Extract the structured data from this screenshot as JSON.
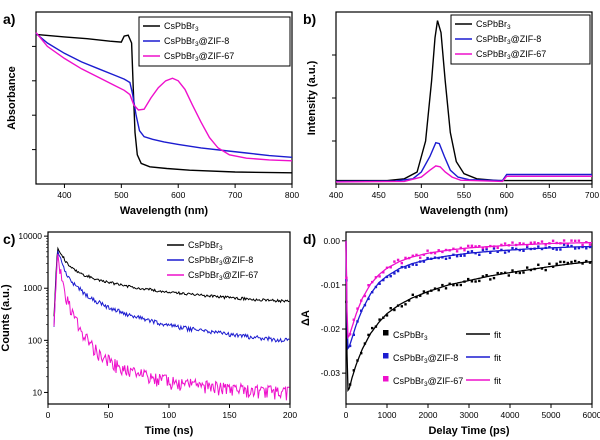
{
  "figure": {
    "background": "#ffffff"
  },
  "colors": {
    "black": "#000000",
    "blue": "#1c1cd0",
    "magenta": "#ee10cc"
  },
  "chart_data": [
    {
      "id": "a",
      "panel_label": "a)",
      "type": "line",
      "xlabel": "Wavelength (nm)",
      "ylabel": "Absorbance",
      "xlim": [
        350,
        800
      ],
      "xticks": [
        400,
        500,
        600,
        700,
        800
      ],
      "ylim": [
        0,
        1
      ],
      "yticks": [
        {
          "v": 0.2,
          "label": ""
        },
        {
          "v": 0.4,
          "label": ""
        },
        {
          "v": 0.6,
          "label": ""
        },
        {
          "v": 0.8,
          "label": ""
        }
      ],
      "legend_position": "top-right",
      "series": [
        {
          "name": "CsPbBr3",
          "color": "#000000",
          "points": [
            [
              350,
              0.87
            ],
            [
              400,
              0.855
            ],
            [
              440,
              0.845
            ],
            [
              480,
              0.83
            ],
            [
              500,
              0.825
            ],
            [
              505,
              0.86
            ],
            [
              512,
              0.865
            ],
            [
              518,
              0.82
            ],
            [
              521,
              0.55
            ],
            [
              524,
              0.3
            ],
            [
              528,
              0.17
            ],
            [
              535,
              0.12
            ],
            [
              550,
              0.1
            ],
            [
              580,
              0.09
            ],
            [
              620,
              0.08
            ],
            [
              700,
              0.07
            ],
            [
              800,
              0.065
            ]
          ]
        },
        {
          "name": "CsPbBr3@ZIF-8",
          "color": "#1c1cd0",
          "points": [
            [
              350,
              0.875
            ],
            [
              370,
              0.82
            ],
            [
              400,
              0.76
            ],
            [
              430,
              0.71
            ],
            [
              460,
              0.67
            ],
            [
              490,
              0.63
            ],
            [
              505,
              0.61
            ],
            [
              515,
              0.59
            ],
            [
              520,
              0.52
            ],
            [
              526,
              0.4
            ],
            [
              532,
              0.31
            ],
            [
              540,
              0.275
            ],
            [
              555,
              0.26
            ],
            [
              575,
              0.245
            ],
            [
              600,
              0.23
            ],
            [
              640,
              0.21
            ],
            [
              680,
              0.195
            ],
            [
              720,
              0.18
            ],
            [
              760,
              0.165
            ],
            [
              800,
              0.155
            ]
          ]
        },
        {
          "name": "CsPbBr3@ZIF-67",
          "color": "#ee10cc",
          "points": [
            [
              350,
              0.88
            ],
            [
              370,
              0.8
            ],
            [
              400,
              0.73
            ],
            [
              430,
              0.67
            ],
            [
              460,
              0.62
            ],
            [
              490,
              0.57
            ],
            [
              505,
              0.545
            ],
            [
              515,
              0.52
            ],
            [
              522,
              0.46
            ],
            [
              530,
              0.43
            ],
            [
              540,
              0.435
            ],
            [
              552,
              0.5
            ],
            [
              565,
              0.56
            ],
            [
              578,
              0.6
            ],
            [
              590,
              0.615
            ],
            [
              600,
              0.6
            ],
            [
              612,
              0.55
            ],
            [
              625,
              0.46
            ],
            [
              640,
              0.36
            ],
            [
              655,
              0.27
            ],
            [
              670,
              0.21
            ],
            [
              690,
              0.17
            ],
            [
              720,
              0.15
            ],
            [
              760,
              0.14
            ],
            [
              800,
              0.135
            ]
          ]
        }
      ]
    },
    {
      "id": "b",
      "panel_label": "b)",
      "type": "line",
      "xlabel": "Wavelength (nm)",
      "ylabel": "Intensity (a.u.)",
      "xlim": [
        400,
        700
      ],
      "xticks": [
        400,
        450,
        500,
        550,
        600,
        650,
        700
      ],
      "ylim": [
        0,
        1
      ],
      "yticks": [
        {
          "v": 0.25,
          "label": ""
        },
        {
          "v": 0.5,
          "label": ""
        },
        {
          "v": 0.75,
          "label": ""
        }
      ],
      "legend_position": "top-right",
      "series": [
        {
          "name": "CsPbBr3",
          "color": "#000000",
          "points": [
            [
              400,
              0.02
            ],
            [
              460,
              0.02
            ],
            [
              480,
              0.03
            ],
            [
              495,
              0.07
            ],
            [
              505,
              0.25
            ],
            [
              512,
              0.6
            ],
            [
              516,
              0.85
            ],
            [
              519,
              0.95
            ],
            [
              523,
              0.88
            ],
            [
              528,
              0.6
            ],
            [
              534,
              0.3
            ],
            [
              541,
              0.13
            ],
            [
              550,
              0.06
            ],
            [
              565,
              0.03
            ],
            [
              590,
              0.02
            ],
            [
              700,
              0.02
            ]
          ]
        },
        {
          "name": "CsPbBr3@ZIF-8",
          "color": "#1c1cd0",
          "points": [
            [
              400,
              0.015
            ],
            [
              470,
              0.018
            ],
            [
              490,
              0.03
            ],
            [
              500,
              0.07
            ],
            [
              510,
              0.16
            ],
            [
              517,
              0.24
            ],
            [
              521,
              0.235
            ],
            [
              527,
              0.16
            ],
            [
              534,
              0.08
            ],
            [
              543,
              0.04
            ],
            [
              556,
              0.025
            ],
            [
              595,
              0.02
            ],
            [
              600,
              0.055
            ],
            [
              700,
              0.055
            ]
          ]
        },
        {
          "name": "CsPbBr3@ZIF-67",
          "color": "#ee10cc",
          "points": [
            [
              400,
              0.012
            ],
            [
              480,
              0.015
            ],
            [
              500,
              0.04
            ],
            [
              510,
              0.08
            ],
            [
              517,
              0.105
            ],
            [
              522,
              0.1
            ],
            [
              528,
              0.07
            ],
            [
              536,
              0.04
            ],
            [
              546,
              0.022
            ],
            [
              595,
              0.015
            ],
            [
              600,
              0.045
            ],
            [
              700,
              0.045
            ]
          ]
        }
      ]
    },
    {
      "id": "c",
      "panel_label": "c)",
      "type": "line",
      "ylog": true,
      "xlabel": "Time (ns)",
      "ylabel": "Counts (a.u.)",
      "xlim": [
        0,
        200
      ],
      "xticks": [
        0,
        50,
        100,
        150,
        200
      ],
      "ylim": [
        6,
        12000
      ],
      "yticks": [
        {
          "v": 10,
          "label": "10"
        },
        {
          "v": 100,
          "label": "100"
        },
        {
          "v": 1000,
          "label": "1000"
        },
        {
          "v": 10000,
          "label": "10000"
        }
      ],
      "legend_position": "top-right",
      "series": [
        {
          "name": "CsPbBr3",
          "color": "#000000",
          "noise": 0.06,
          "points": [
            [
              5,
              300
            ],
            [
              7,
              3000
            ],
            [
              8,
              6000
            ],
            [
              10,
              5000
            ],
            [
              15,
              3200
            ],
            [
              20,
              2400
            ],
            [
              30,
              1800
            ],
            [
              40,
              1500
            ],
            [
              50,
              1300
            ],
            [
              70,
              1050
            ],
            [
              90,
              900
            ],
            [
              110,
              800
            ],
            [
              130,
              720
            ],
            [
              150,
              660
            ],
            [
              170,
              610
            ],
            [
              185,
              580
            ],
            [
              200,
              560
            ]
          ]
        },
        {
          "name": "CsPbBr3@ZIF-8",
          "color": "#1c1cd0",
          "noise": 0.1,
          "points": [
            [
              5,
              200
            ],
            [
              7,
              2500
            ],
            [
              8,
              5500
            ],
            [
              10,
              3800
            ],
            [
              15,
              2000
            ],
            [
              20,
              1300
            ],
            [
              30,
              800
            ],
            [
              40,
              560
            ],
            [
              50,
              430
            ],
            [
              70,
              290
            ],
            [
              90,
              220
            ],
            [
              110,
              175
            ],
            [
              130,
              150
            ],
            [
              150,
              130
            ],
            [
              170,
              115
            ],
            [
              185,
              105
            ],
            [
              200,
              100
            ]
          ]
        },
        {
          "name": "CsPbBr3@ZIF-67",
          "color": "#ee10cc",
          "noise": 0.3,
          "points": [
            [
              5,
              150
            ],
            [
              7,
              2200
            ],
            [
              8,
              5000
            ],
            [
              10,
              2500
            ],
            [
              13,
              1100
            ],
            [
              16,
              600
            ],
            [
              20,
              330
            ],
            [
              25,
              190
            ],
            [
              30,
              120
            ],
            [
              40,
              62
            ],
            [
              50,
              40
            ],
            [
              60,
              30
            ],
            [
              75,
              22
            ],
            [
              90,
              18
            ],
            [
              110,
              15
            ],
            [
              130,
              13
            ],
            [
              150,
              12
            ],
            [
              170,
              11
            ],
            [
              185,
              10.5
            ],
            [
              200,
              10
            ]
          ]
        }
      ]
    },
    {
      "id": "d",
      "panel_label": "d)",
      "type": "scatter",
      "xlabel": "Delay Time (ps)",
      "ylabel": "ΔA",
      "xlim": [
        0,
        6000
      ],
      "xticks": [
        0,
        1000,
        2000,
        3000,
        4000,
        5000,
        6000
      ],
      "ylim": [
        -0.037,
        0.002
      ],
      "yticks": [
        {
          "v": 0,
          "label": "0.00"
        },
        {
          "v": -0.01,
          "label": "-0.01"
        },
        {
          "v": -0.02,
          "label": "-0.02"
        },
        {
          "v": -0.03,
          "label": "-0.03"
        }
      ],
      "legend_position": "bottom-right",
      "fit_label": "fit",
      "series": [
        {
          "name": "CsPbBr3",
          "color": "#000000",
          "jitter": 0.0008,
          "points": [
            [
              0,
              0
            ],
            [
              15,
              -0.02
            ],
            [
              40,
              -0.034
            ],
            [
              80,
              -0.0335
            ],
            [
              150,
              -0.031
            ],
            [
              250,
              -0.028
            ],
            [
              400,
              -0.0245
            ],
            [
              600,
              -0.021
            ],
            [
              800,
              -0.0185
            ],
            [
              1000,
              -0.0165
            ],
            [
              1300,
              -0.0145
            ],
            [
              1600,
              -0.013
            ],
            [
              2000,
              -0.0115
            ],
            [
              2500,
              -0.01
            ],
            [
              3000,
              -0.009
            ],
            [
              3500,
              -0.008
            ],
            [
              4000,
              -0.0072
            ],
            [
              4500,
              -0.0065
            ],
            [
              5000,
              -0.0058
            ],
            [
              5500,
              -0.0052
            ],
            [
              6000,
              -0.0047
            ]
          ]
        },
        {
          "name": "CsPbBr3@ZIF-8",
          "color": "#1c1cd0",
          "jitter": 0.0006,
          "points": [
            [
              0,
              0
            ],
            [
              15,
              -0.014
            ],
            [
              40,
              -0.0245
            ],
            [
              80,
              -0.024
            ],
            [
              150,
              -0.022
            ],
            [
              250,
              -0.019
            ],
            [
              400,
              -0.0155
            ],
            [
              600,
              -0.012
            ],
            [
              800,
              -0.0095
            ],
            [
              1000,
              -0.008
            ],
            [
              1300,
              -0.0063
            ],
            [
              1600,
              -0.0052
            ],
            [
              2000,
              -0.0042
            ],
            [
              2500,
              -0.0034
            ],
            [
              3000,
              -0.0028
            ],
            [
              3500,
              -0.0024
            ],
            [
              4000,
              -0.0021
            ],
            [
              4500,
              -0.0018
            ],
            [
              5000,
              -0.0016
            ],
            [
              5500,
              -0.0014
            ],
            [
              6000,
              -0.0013
            ]
          ]
        },
        {
          "name": "CsPbBr3@ZIF-67",
          "color": "#ee10cc",
          "jitter": 0.0006,
          "points": [
            [
              0,
              0
            ],
            [
              15,
              -0.012
            ],
            [
              40,
              -0.022
            ],
            [
              80,
              -0.0215
            ],
            [
              150,
              -0.0195
            ],
            [
              250,
              -0.0165
            ],
            [
              400,
              -0.013
            ],
            [
              600,
              -0.0098
            ],
            [
              800,
              -0.0077
            ],
            [
              1000,
              -0.0062
            ],
            [
              1300,
              -0.0047
            ],
            [
              1600,
              -0.0037
            ],
            [
              2000,
              -0.0028
            ],
            [
              2500,
              -0.0021
            ],
            [
              3000,
              -0.0016
            ],
            [
              3500,
              -0.0013
            ],
            [
              4000,
              -0.001
            ],
            [
              4500,
              -0.0008
            ],
            [
              5000,
              -0.0006
            ],
            [
              5500,
              -0.0005
            ],
            [
              6000,
              -0.0004
            ]
          ]
        }
      ]
    }
  ]
}
